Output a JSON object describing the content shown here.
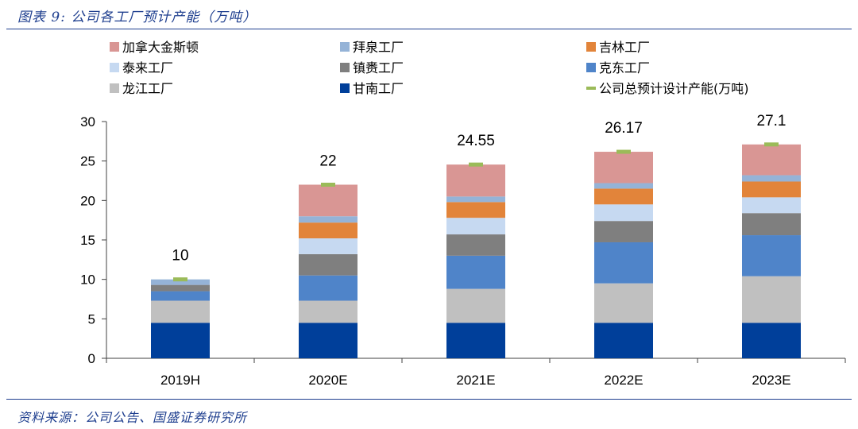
{
  "header": {
    "title": "图表 9:  公司各工厂预计产能（万吨）"
  },
  "footer": {
    "source": "资料来源：公司公告、国盛证券研究所"
  },
  "chart_data": {
    "type": "bar",
    "stacked": true,
    "title": "图表 9:  公司各工厂预计产能（万吨）",
    "categories": [
      "2019H",
      "2020E",
      "2021E",
      "2022E",
      "2023E"
    ],
    "ylim": [
      0,
      30
    ],
    "yticks": [
      0,
      5,
      10,
      15,
      20,
      25,
      30
    ],
    "grid": false,
    "legend_position": "top",
    "series": [
      {
        "name": "甘南工厂",
        "color": "#003f9a",
        "values": [
          4.5,
          4.5,
          4.5,
          4.5,
          4.5
        ]
      },
      {
        "name": "龙江工厂",
        "color": "#c0c0c0",
        "values": [
          2.8,
          2.8,
          4.3,
          5.0,
          5.9
        ]
      },
      {
        "name": "克东工厂",
        "color": "#4f84c9",
        "values": [
          1.2,
          3.2,
          4.2,
          5.2,
          5.2
        ]
      },
      {
        "name": "镇赉工厂",
        "color": "#7f7f7f",
        "values": [
          0.8,
          2.7,
          2.7,
          2.7,
          2.8
        ]
      },
      {
        "name": "泰来工厂",
        "color": "#c6d9f1",
        "values": [
          0.0,
          2.0,
          2.1,
          2.1,
          2.0
        ]
      },
      {
        "name": "吉林工厂",
        "color": "#e2843a",
        "values": [
          0.0,
          2.0,
          2.0,
          2.0,
          2.0
        ]
      },
      {
        "name": "拜泉工厂",
        "color": "#95b3d7",
        "values": [
          0.7,
          0.8,
          0.7,
          0.7,
          0.8
        ]
      },
      {
        "name": "加拿大金斯顿",
        "color": "#d99694",
        "values": [
          0.0,
          4.0,
          4.05,
          3.97,
          3.9
        ]
      }
    ],
    "totals": {
      "name": "公司总预计设计产能(万吨)",
      "color": "#9bbb59",
      "values": [
        10,
        22,
        24.55,
        26.17,
        27.1
      ],
      "labels": [
        "10",
        "22",
        "24.55",
        "26.17",
        "27.1"
      ]
    },
    "legend_order": [
      "加拿大金斯顿",
      "拜泉工厂",
      "吉林工厂",
      "泰来工厂",
      "镇赉工厂",
      "克东工厂",
      "龙江工厂",
      "甘南工厂",
      "公司总预计设计产能(万吨)"
    ]
  }
}
